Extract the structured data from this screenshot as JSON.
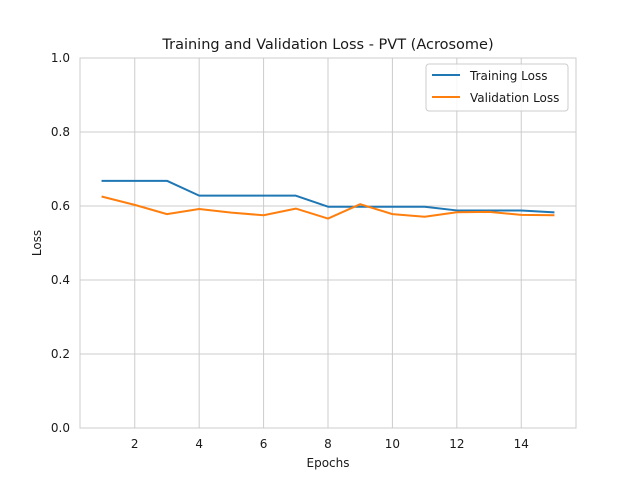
{
  "chart_data": {
    "type": "line",
    "title": "Training and Validation Loss - PVT (Acrosome)",
    "xlabel": "Epochs",
    "ylabel": "Loss",
    "xlim": [
      0.3,
      15.7
    ],
    "ylim": [
      0.0,
      1.0
    ],
    "xticks": [
      2,
      4,
      6,
      8,
      10,
      12,
      14
    ],
    "yticks": [
      0.0,
      0.2,
      0.4,
      0.6,
      0.8,
      1.0
    ],
    "xtick_labels": [
      "2",
      "4",
      "6",
      "8",
      "10",
      "12",
      "14"
    ],
    "ytick_labels": [
      "0.0",
      "0.2",
      "0.4",
      "0.6",
      "0.8",
      "1.0"
    ],
    "grid": true,
    "legend_position": "top-right",
    "x": [
      1,
      2,
      3,
      4,
      5,
      6,
      7,
      8,
      9,
      10,
      11,
      12,
      13,
      14,
      15
    ],
    "series": [
      {
        "name": "Training Loss",
        "color": "#1f77b4",
        "values": [
          0.668,
          0.668,
          0.668,
          0.628,
          0.628,
          0.628,
          0.628,
          0.598,
          0.598,
          0.598,
          0.598,
          0.588,
          0.588,
          0.588,
          0.583
        ]
      },
      {
        "name": "Validation Loss",
        "color": "#ff7f0e",
        "values": [
          0.625,
          0.603,
          0.578,
          0.592,
          0.582,
          0.575,
          0.593,
          0.566,
          0.605,
          0.578,
          0.571,
          0.583,
          0.584,
          0.576,
          0.575
        ]
      }
    ]
  }
}
